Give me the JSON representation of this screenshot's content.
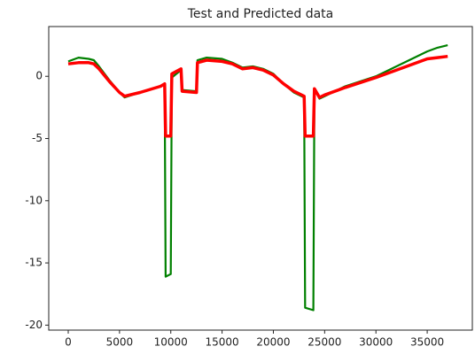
{
  "chart_data": {
    "type": "line",
    "title": "Test and Predicted data",
    "x": [
      0,
      1000,
      2000,
      2500,
      3000,
      4000,
      5000,
      5500,
      7000,
      9000,
      9400,
      9500,
      10000,
      10100,
      11000,
      11100,
      12500,
      12600,
      13500,
      15000,
      16000,
      17000,
      18000,
      19000,
      20000,
      21000,
      22000,
      23000,
      23100,
      23900,
      24000,
      24500,
      25000,
      27000,
      30000,
      33000,
      35000,
      36000,
      37000
    ],
    "series": [
      {
        "color": "#008000",
        "values": [
          1.2,
          1.5,
          1.4,
          1.3,
          0.8,
          -0.3,
          -1.3,
          -1.7,
          -1.3,
          -0.8,
          -0.6,
          -16.1,
          -15.9,
          -0.1,
          0.5,
          -1.1,
          -1.2,
          1.3,
          1.5,
          1.4,
          1.1,
          0.7,
          0.8,
          0.6,
          0.2,
          -0.6,
          -1.3,
          -1.7,
          -18.6,
          -18.8,
          -1.0,
          -1.8,
          -1.6,
          -0.8,
          0.0,
          1.2,
          2.0,
          2.3,
          2.5
        ]
      },
      {
        "color": "#ff0000",
        "values": [
          1.0,
          1.1,
          1.1,
          1.0,
          0.6,
          -0.4,
          -1.3,
          -1.6,
          -1.3,
          -0.8,
          -0.6,
          -4.8,
          -4.8,
          0.2,
          0.6,
          -1.2,
          -1.3,
          1.1,
          1.3,
          1.2,
          1.0,
          0.6,
          0.7,
          0.5,
          0.1,
          -0.6,
          -1.2,
          -1.6,
          -4.8,
          -4.8,
          -1.0,
          -1.7,
          -1.5,
          -0.9,
          -0.1,
          0.8,
          1.4,
          1.5,
          1.6
        ]
      }
    ],
    "xlim": [
      -1900,
      39400
    ],
    "xticks": [
      0,
      5000,
      10000,
      15000,
      20000,
      25000,
      30000,
      35000
    ],
    "ylim": [
      -20.4,
      4.0
    ],
    "yticks": [
      -20,
      -15,
      -10,
      -5,
      0
    ]
  }
}
